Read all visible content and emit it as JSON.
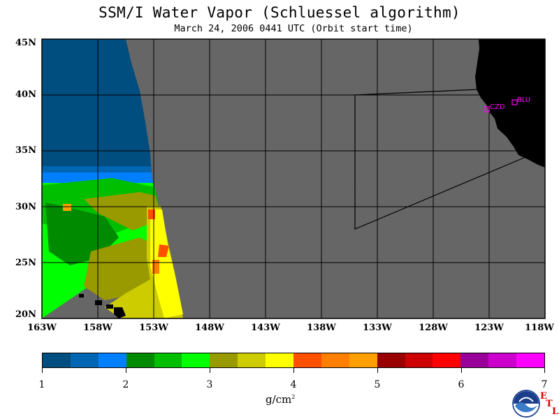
{
  "header": {
    "title": "SSM/I Water Vapor (Schluessel algorithm)",
    "subtitle": "March 24, 2006  0441 UTC  (Orbit start time)"
  },
  "map": {
    "lat_labels": [
      "45N",
      "40N",
      "35N",
      "30N",
      "25N",
      "20N"
    ],
    "lon_labels": [
      "163W",
      "158W",
      "153W",
      "148W",
      "143W",
      "138W",
      "133W",
      "128W",
      "123W",
      "118W"
    ],
    "stations": [
      {
        "id": "CZD",
        "label": "CZD",
        "lat": 38.6,
        "lon": -123.2
      },
      {
        "id": "BLU",
        "label": "BLU",
        "lat": 39.3,
        "lon": -120.7
      }
    ],
    "colors": {
      "no_data": "#666666",
      "land": "#000000",
      "station": "#ff00ff",
      "grid": "#000000"
    }
  },
  "colorbar": {
    "min": 1,
    "max": 7,
    "tick_labels": [
      "1",
      "2",
      "3",
      "4",
      "5",
      "6",
      "7"
    ],
    "unit": "g/cm",
    "unit_sup": "2",
    "colors": [
      "#004d80",
      "#0066b3",
      "#0080ff",
      "#008a00",
      "#00bf00",
      "#00ff00",
      "#999900",
      "#cccc00",
      "#ffff00",
      "#ff5000",
      "#ff8000",
      "#ffa000",
      "#990000",
      "#cc0000",
      "#ff0000",
      "#990099",
      "#cc00cc",
      "#ff00ff"
    ]
  },
  "logo": {
    "name": "NOAA",
    "letters": [
      "E",
      "T",
      "L"
    ]
  }
}
